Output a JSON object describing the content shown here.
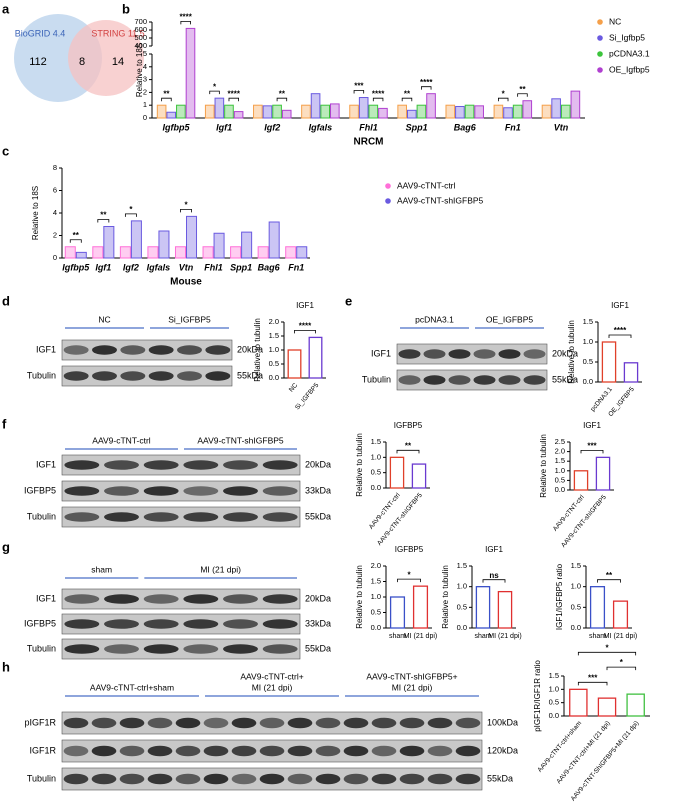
{
  "panel_labels": [
    "a",
    "b",
    "c",
    "d",
    "e",
    "f",
    "g",
    "h"
  ],
  "venn": {
    "left": {
      "label": "BioGRID 4.4",
      "count": 112
    },
    "overlap": 8,
    "right": {
      "label": "STRING 11.5",
      "count": 14
    }
  },
  "blots": [
    {
      "groups": [
        [
          "NC"
        ],
        [
          "Si_IGFBP5"
        ]
      ],
      "rows": [
        {
          "name": "IGF1",
          "size": "20kDa"
        },
        {
          "name": "Tubulin",
          "size": "55kDa"
        }
      ]
    },
    {
      "groups": [
        [
          "pcDNA3.1"
        ],
        [
          "OE_IGFBP5"
        ]
      ],
      "rows": [
        {
          "name": "IGF1",
          "size": "20kDa"
        },
        {
          "name": "Tubulin",
          "size": "55kDa"
        }
      ]
    },
    {
      "groups": [
        [
          "AAV9-cTNT-ctrl"
        ],
        [
          "AAV9-cTNT-shIGFBP5"
        ]
      ],
      "rows": [
        {
          "name": "IGF1",
          "size": "20kDa"
        },
        {
          "name": "IGFBP5",
          "size": "33kDa"
        },
        {
          "name": "Tubulin",
          "size": "55kDa"
        }
      ]
    },
    {
      "groups": [
        [
          "sham"
        ],
        [
          "MI (21 dpi)"
        ]
      ],
      "rows": [
        {
          "name": "IGF1",
          "size": "20kDa"
        },
        {
          "name": "IGFBP5",
          "size": "33kDa"
        },
        {
          "name": "Tubulin",
          "size": "55kDa"
        }
      ]
    },
    {
      "groups": [
        [
          "AAV9-cTNT-ctrl+sham"
        ],
        [
          "AAV9-cTNT-ctrl+",
          "MI (21 dpi)"
        ],
        [
          "AAV9-cTNT-shIGFBP5+",
          "MI (21 dpi)"
        ]
      ],
      "rows": [
        {
          "name": "pIGF1R",
          "size": "100kDa"
        },
        {
          "name": "IGF1R",
          "size": "120kDa"
        },
        {
          "name": "Tubulin",
          "size": "55kDa"
        }
      ]
    }
  ],
  "chart_data": [
    {
      "type": "bar",
      "ylabel": "Relative to 18S",
      "xlabel": "NRCM",
      "categories": [
        "Igfbp5",
        "Igf1",
        "Igf2",
        "Igfals",
        "Fhl1",
        "Spp1",
        "Bag6",
        "Fn1",
        "Vtn"
      ],
      "series": [
        {
          "name": "NC",
          "color": "#f5a04a",
          "values": [
            1.0,
            1.0,
            1.0,
            1.0,
            1.0,
            1.0,
            1.0,
            1.0,
            1.0
          ]
        },
        {
          "name": "Si_Igfbp5",
          "color": "#6a5ae0",
          "values": [
            0.45,
            1.55,
            0.95,
            1.9,
            1.6,
            0.6,
            0.9,
            0.8,
            1.5
          ]
        },
        {
          "name": "pCDNA3.1",
          "color": "#3cc43c",
          "values": [
            1.0,
            1.0,
            1.0,
            1.0,
            1.0,
            1.0,
            1.0,
            1.0,
            1.0
          ]
        },
        {
          "name": "OE_Igfbp5",
          "color": "#b040d0",
          "values": [
            620,
            0.5,
            0.6,
            1.1,
            0.75,
            1.9,
            0.95,
            1.35,
            2.1
          ]
        }
      ],
      "ylim": [
        0,
        5
      ],
      "yticks": [
        0,
        1,
        2,
        3,
        4,
        5
      ],
      "y_break": {
        "ylim": [
          400,
          700
        ],
        "yticks": [
          400,
          500,
          600,
          700
        ]
      },
      "annotations": [
        {
          "text": "**",
          "category": 0,
          "from": 0,
          "to": 1
        },
        {
          "text": "****",
          "category": 0,
          "from": 2,
          "to": 3
        },
        {
          "text": "*",
          "category": 1,
          "from": 0,
          "to": 1
        },
        {
          "text": "****",
          "category": 1,
          "from": 2,
          "to": 3
        },
        {
          "text": "**",
          "category": 2,
          "from": 2,
          "to": 3
        },
        {
          "text": "***",
          "category": 4,
          "from": 0,
          "to": 1
        },
        {
          "text": "****",
          "category": 4,
          "from": 2,
          "to": 3
        },
        {
          "text": "**",
          "category": 5,
          "from": 0,
          "to": 1
        },
        {
          "text": "****",
          "category": 5,
          "from": 2,
          "to": 3
        },
        {
          "text": "*",
          "category": 7,
          "from": 0,
          "to": 1
        },
        {
          "text": "**",
          "category": 7,
          "from": 2,
          "to": 3
        }
      ]
    },
    {
      "type": "bar",
      "ylabel": "Relative to 18S",
      "xlabel": "Mouse",
      "categories": [
        "Igfbp5",
        "Igf1",
        "Igf2",
        "Igfals",
        "Vtn",
        "Fhl1",
        "Spp1",
        "Bag6",
        "Fn1"
      ],
      "series": [
        {
          "name": "AAV9-cTNT-ctrl",
          "color": "#ff6fd8",
          "values": [
            1.0,
            1.0,
            1.0,
            1.0,
            1.0,
            1.0,
            1.0,
            1.0,
            1.0
          ]
        },
        {
          "name": "AAV9-cTNT-shIGFBP5",
          "color": "#6a5ae0",
          "values": [
            0.5,
            2.8,
            3.3,
            2.4,
            3.7,
            2.2,
            2.3,
            3.2,
            1.0
          ]
        }
      ],
      "ylim": [
        0,
        8
      ],
      "yticks": [
        0,
        2,
        4,
        6,
        8
      ],
      "annotations": [
        {
          "text": "**",
          "category": 0,
          "from": 0,
          "to": 1
        },
        {
          "text": "**",
          "category": 1,
          "from": 0,
          "to": 1
        },
        {
          "text": "*",
          "category": 2,
          "from": 0,
          "to": 1
        },
        {
          "text": "*",
          "category": 4,
          "from": 0,
          "to": 1
        }
      ]
    },
    {
      "type": "bar",
      "title": "IGF1",
      "ylabel": "Relative to tubulin",
      "categories": [
        "NC",
        "Si_IGFBP5"
      ],
      "values": [
        1.0,
        1.45
      ],
      "colors": [
        "#e0402a",
        "#6a3ad0"
      ],
      "ylim": [
        0,
        2
      ],
      "yticks": [
        {
          "value": 0,
          "label": "0.0"
        },
        0.5,
        {
          "value": 1,
          "label": "1.0"
        },
        1.5,
        {
          "value": 2,
          "label": "2.0"
        }
      ],
      "annotations": [
        {
          "text": "****",
          "from": 0,
          "to": 1
        }
      ]
    },
    {
      "type": "bar",
      "title": "IGF1",
      "ylabel": "Relative to tubulin",
      "categories": [
        "pcDNA3.1",
        "OE_IGFBP5"
      ],
      "values": [
        1.0,
        0.48
      ],
      "colors": [
        "#e0402a",
        "#6a3ad0"
      ],
      "ylim": [
        0,
        1.5
      ],
      "yticks": [
        {
          "value": 0,
          "label": "0.0"
        },
        0.5,
        {
          "value": 1,
          "label": "1.0"
        },
        1.5
      ],
      "annotations": [
        {
          "text": "****",
          "from": 0,
          "to": 1
        }
      ]
    },
    {
      "type": "bar",
      "title": "IGFBP5",
      "ylabel": "Relative to tubulin",
      "categories": [
        "AAV9-cTNT-ctrl",
        "AAV9-cTNT-shIGFBP5"
      ],
      "values": [
        1.0,
        0.78
      ],
      "colors": [
        "#e0402a",
        "#6a3ad0"
      ],
      "ylim": [
        0,
        1.5
      ],
      "yticks": [
        {
          "value": 0,
          "label": "0.0"
        },
        0.5,
        {
          "value": 1,
          "label": "1.0"
        },
        1.5
      ],
      "annotations": [
        {
          "text": "**",
          "from": 0,
          "to": 1
        }
      ]
    },
    {
      "type": "bar",
      "title": "IGF1",
      "ylabel": "Relative to tubulin",
      "categories": [
        "AAV9-cTNT-ctrl",
        "AAV9-cTNT-shIGFBP5"
      ],
      "values": [
        1.0,
        1.7
      ],
      "colors": [
        "#e0402a",
        "#6a3ad0"
      ],
      "ylim": [
        0,
        2.5
      ],
      "yticks": [
        {
          "value": 0,
          "label": "0.0"
        },
        0.5,
        {
          "value": 1,
          "label": "1.0"
        },
        1.5,
        {
          "value": 2,
          "label": "2.0"
        },
        2.5
      ],
      "annotations": [
        {
          "text": "***",
          "from": 0,
          "to": 1
        }
      ]
    },
    {
      "type": "bar",
      "title": "IGFBP5",
      "ylabel": "Relative to tubulin",
      "categories": [
        "sham",
        "MI (21 dpi)"
      ],
      "values": [
        1.0,
        1.35
      ],
      "colors": [
        "#3a50c8",
        "#e03030"
      ],
      "ylim": [
        0,
        2
      ],
      "yticks": [
        {
          "value": 0,
          "label": "0.0"
        },
        0.5,
        {
          "value": 1,
          "label": "1.0"
        },
        1.5,
        {
          "value": 2,
          "label": "2.0"
        }
      ],
      "annotations": [
        {
          "text": "*",
          "from": 0,
          "to": 1
        }
      ]
    },
    {
      "type": "bar",
      "title": "IGF1",
      "ylabel": "Relative to tubulin",
      "categories": [
        "sham",
        "MI (21 dpi)"
      ],
      "values": [
        1.0,
        0.88
      ],
      "colors": [
        "#3a50c8",
        "#e03030"
      ],
      "ylim": [
        0,
        1.5
      ],
      "yticks": [
        {
          "value": 0,
          "label": "0.0"
        },
        0.5,
        {
          "value": 1,
          "label": "1.0"
        },
        1.5
      ],
      "annotations": [
        {
          "text": "ns",
          "from": 0,
          "to": 1
        }
      ]
    },
    {
      "type": "bar",
      "ylabel": "IGF1/IGFBP5 ratio",
      "categories": [
        "sham",
        "MI (21 dpi)"
      ],
      "values": [
        1.0,
        0.65
      ],
      "colors": [
        "#3a50c8",
        "#e03030"
      ],
      "ylim": [
        0,
        1.5
      ],
      "yticks": [
        {
          "value": 0,
          "label": "0.0"
        },
        0.5,
        {
          "value": 1,
          "label": "1.0"
        },
        1.5
      ],
      "annotations": [
        {
          "text": "**",
          "from": 0,
          "to": 1
        }
      ]
    },
    {
      "type": "bar",
      "ylabel": "pIGF1R/IGF1R ratio",
      "categories": [
        "AAV9-cTNT-ctrl+sham",
        "AAV9-cTNT-ctrl+MI (21 dpi)",
        "AAV9-cTNT-ShIGFBP5+MI (21 dpi)"
      ],
      "values": [
        1.0,
        0.67,
        0.82
      ],
      "colors": [
        "#e03030",
        "#e03030",
        "#40c040"
      ],
      "ylim": [
        0,
        1.5
      ],
      "yticks": [
        {
          "value": 0,
          "label": "0.0"
        },
        0.5,
        {
          "value": 1,
          "label": "1.0"
        },
        1.5
      ],
      "annotations": [
        {
          "text": "***",
          "from": 0,
          "to": 1
        },
        {
          "text": "*",
          "from": 1,
          "to": 2
        },
        {
          "text": "*",
          "from": 0,
          "to": 2
        }
      ]
    }
  ]
}
